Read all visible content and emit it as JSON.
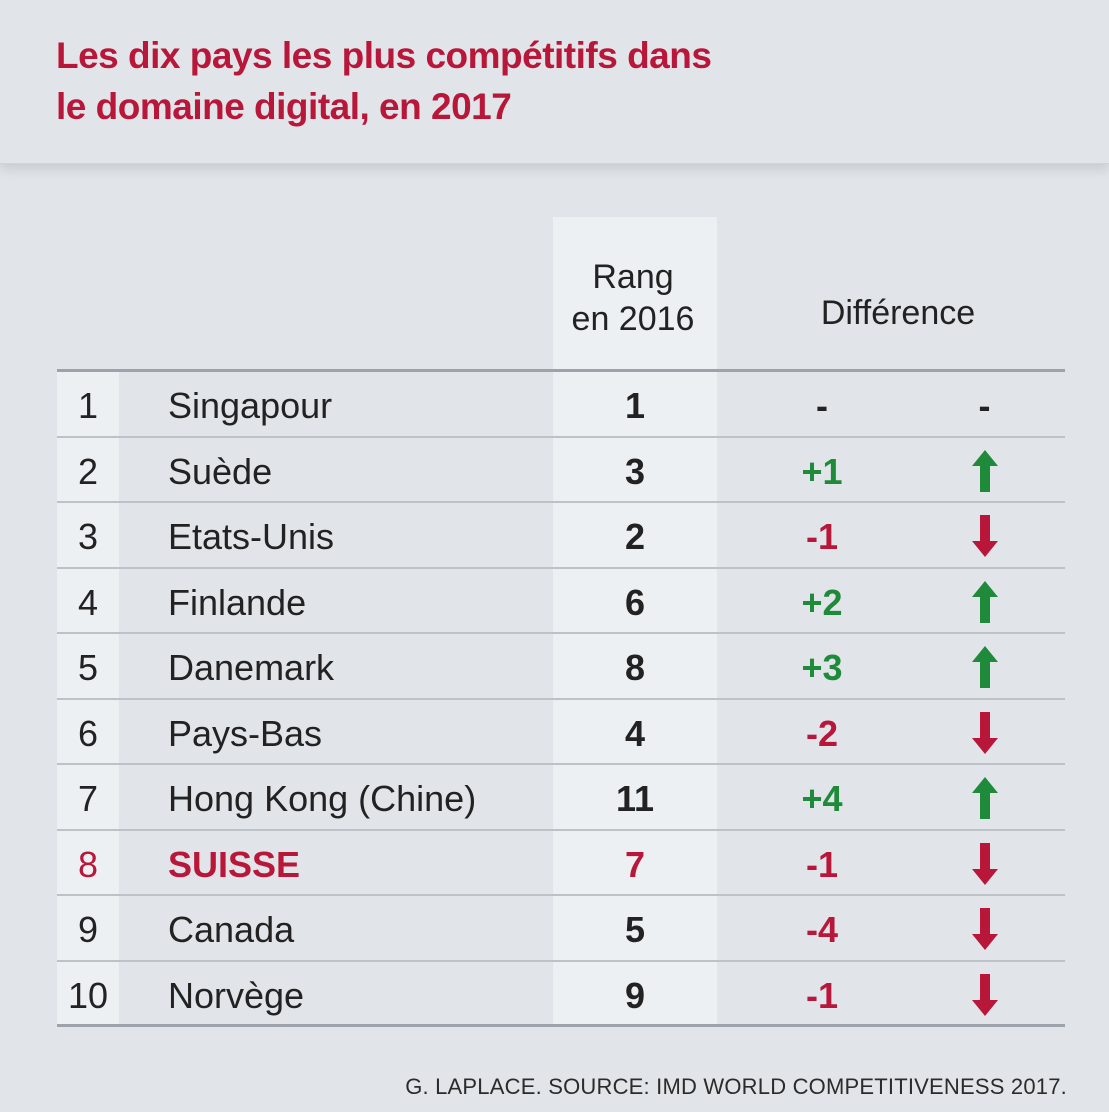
{
  "title": {
    "line1": "Les dix pays les plus compétitifs dans",
    "line2": "le domaine digital, en 2017"
  },
  "columns": {
    "rank2016_line1": "Rang",
    "rank2016_line2": "en 2016",
    "difference": "Différence"
  },
  "rows": [
    {
      "rank": "1",
      "country": "Singapour",
      "rank2016": "1",
      "diff": "-",
      "trend": "none"
    },
    {
      "rank": "2",
      "country": "Suède",
      "rank2016": "3",
      "diff": "+1",
      "trend": "up"
    },
    {
      "rank": "3",
      "country": "Etats-Unis",
      "rank2016": "2",
      "diff": "-1",
      "trend": "down"
    },
    {
      "rank": "4",
      "country": "Finlande",
      "rank2016": "6",
      "diff": "+2",
      "trend": "up"
    },
    {
      "rank": "5",
      "country": "Danemark",
      "rank2016": "8",
      "diff": "+3",
      "trend": "up"
    },
    {
      "rank": "6",
      "country": "Pays-Bas",
      "rank2016": "4",
      "diff": "-2",
      "trend": "down"
    },
    {
      "rank": "7",
      "country": "Hong Kong (Chine)",
      "rank2016": "11",
      "diff": "+4",
      "trend": "up"
    },
    {
      "rank": "8",
      "country": "SUISSE",
      "rank2016": "7",
      "diff": "-1",
      "trend": "down",
      "highlight": true
    },
    {
      "rank": "9",
      "country": "Canada",
      "rank2016": "5",
      "diff": "-4",
      "trend": "down"
    },
    {
      "rank": "10",
      "country": "Norvège",
      "rank2016": "9",
      "diff": "-1",
      "trend": "down"
    }
  ],
  "no_change_symbol": "-",
  "source": "G. LAPLACE. SOURCE: IMD WORLD COMPETITIVENESS 2017.",
  "colors": {
    "accent": "#b8173a",
    "up": "#1e8a3a",
    "background": "#e1e5e9",
    "column_shade": "#edf0f2"
  }
}
